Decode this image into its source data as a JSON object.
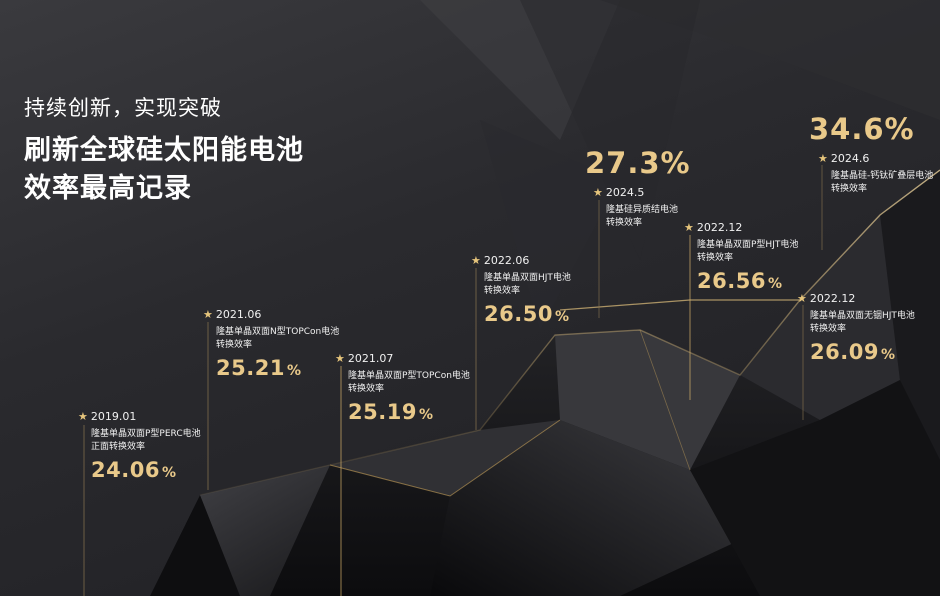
{
  "headline": {
    "subtitle": "持续创新，实现突破",
    "title_line1": "刷新全球硅太阳能电池",
    "title_line2": "效率最高记录"
  },
  "accent_color": "#e9c98a",
  "milestones": [
    {
      "date": "2019.01",
      "desc1": "隆基单晶双面P型PERC电池",
      "desc2": "正面转换效率",
      "value": "24.06",
      "unit": "%"
    },
    {
      "date": "2021.06",
      "desc1": "隆基单晶双面N型TOPCon电池",
      "desc2": "转换效率",
      "value": "25.21",
      "unit": "%"
    },
    {
      "date": "2021.07",
      "desc1": "隆基单晶双面P型TOPCon电池",
      "desc2": "转换效率",
      "value": "25.19",
      "unit": "%"
    },
    {
      "date": "2022.06",
      "desc1": "隆基单晶双面HJT电池",
      "desc2": "转换效率",
      "value": "26.50",
      "unit": "%"
    },
    {
      "date": "2022.12",
      "desc1": "隆基单晶双面P型HJT电池",
      "desc2": "转换效率",
      "value": "26.56",
      "unit": "%"
    },
    {
      "date": "2022.12",
      "desc1": "隆基单晶双面无铟HJT电池",
      "desc2": "转换效率",
      "value": "26.09",
      "unit": "%"
    },
    {
      "date": "2024.5",
      "desc1": "隆基硅异质结电池",
      "desc2": "转换效率",
      "value": "27.3%"
    },
    {
      "date": "2024.6",
      "desc1": "隆基晶硅-钙钛矿叠层电池",
      "desc2": "转换效率",
      "value": "34.6%"
    }
  ]
}
